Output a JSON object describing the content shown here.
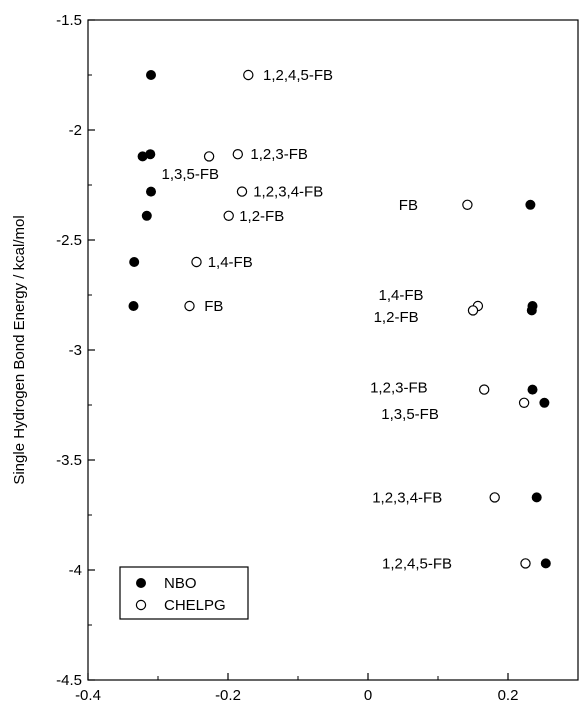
{
  "chart_data": {
    "type": "scatter",
    "xlim": [
      -0.4,
      0.3
    ],
    "ylim": [
      -4.5,
      -1.5
    ],
    "xticks": [
      -0.4,
      -0.2,
      0,
      0.2
    ],
    "xtick_labels": [
      "-0.4",
      "-0.2",
      "0",
      "0.2"
    ],
    "yticks": [
      -1.5,
      -2,
      -2.5,
      -3,
      -3.5,
      -4,
      -4.5
    ],
    "ytick_labels": [
      "-1.5",
      "-2",
      "-2.5",
      "-3",
      "-3.5",
      "-4",
      "-4.5"
    ],
    "xlabel": "",
    "ylabel": "Single Hydrogen Bond Energy / kcal/mol",
    "grid": false,
    "legend": {
      "placement": "bottom-left",
      "entries": [
        "NBO",
        "CHELPG"
      ]
    },
    "series": [
      {
        "name": "NBO",
        "marker": "filled-circle",
        "points": [
          {
            "x": -0.31,
            "y": -1.75
          },
          {
            "x": -0.322,
            "y": -2.12
          },
          {
            "x": -0.311,
            "y": -2.11
          },
          {
            "x": -0.31,
            "y": -2.28
          },
          {
            "x": -0.316,
            "y": -2.39
          },
          {
            "x": -0.334,
            "y": -2.6
          },
          {
            "x": -0.335,
            "y": -2.8
          },
          {
            "x": 0.232,
            "y": -2.34
          },
          {
            "x": 0.235,
            "y": -2.8
          },
          {
            "x": 0.234,
            "y": -2.82
          },
          {
            "x": 0.235,
            "y": -3.18
          },
          {
            "x": 0.252,
            "y": -3.24
          },
          {
            "x": 0.241,
            "y": -3.67
          },
          {
            "x": 0.254,
            "y": -3.97
          }
        ]
      },
      {
        "name": "CHELPG",
        "marker": "open-circle",
        "points": [
          {
            "x": -0.171,
            "y": -1.75
          },
          {
            "x": -0.227,
            "y": -2.12
          },
          {
            "x": -0.186,
            "y": -2.11
          },
          {
            "x": -0.18,
            "y": -2.28
          },
          {
            "x": -0.199,
            "y": -2.39
          },
          {
            "x": -0.245,
            "y": -2.6
          },
          {
            "x": -0.255,
            "y": -2.8
          },
          {
            "x": 0.142,
            "y": -2.34
          },
          {
            "x": 0.157,
            "y": -2.8
          },
          {
            "x": 0.15,
            "y": -2.82
          },
          {
            "x": 0.166,
            "y": -3.18
          },
          {
            "x": 0.223,
            "y": -3.24
          },
          {
            "x": 0.181,
            "y": -3.67
          },
          {
            "x": 0.225,
            "y": -3.97
          }
        ]
      }
    ],
    "annotations": [
      {
        "text": "1,2,4,5-FB",
        "x": -0.15,
        "y": -1.75,
        "anchor": "start"
      },
      {
        "text": "1,2,3-FB",
        "x": -0.168,
        "y": -2.11,
        "anchor": "start"
      },
      {
        "text": "1,3,5-FB",
        "x": -0.295,
        "y": -2.2,
        "anchor": "start"
      },
      {
        "text": "1,2,3,4-FB",
        "x": -0.164,
        "y": -2.28,
        "anchor": "start"
      },
      {
        "text": "1,2-FB",
        "x": -0.184,
        "y": -2.39,
        "anchor": "start"
      },
      {
        "text": "1,4-FB",
        "x": -0.229,
        "y": -2.6,
        "anchor": "start"
      },
      {
        "text": "FB",
        "x": -0.234,
        "y": -2.8,
        "anchor": "start"
      },
      {
        "text": "FB",
        "x": 0.044,
        "y": -2.34,
        "anchor": "start"
      },
      {
        "text": "1,4-FB",
        "x": 0.015,
        "y": -2.75,
        "anchor": "start"
      },
      {
        "text": "1,2-FB",
        "x": 0.008,
        "y": -2.85,
        "anchor": "start"
      },
      {
        "text": "1,2,3-FB",
        "x": 0.003,
        "y": -3.17,
        "anchor": "start"
      },
      {
        "text": "1,3,5-FB",
        "x": 0.019,
        "y": -3.29,
        "anchor": "start"
      },
      {
        "text": "1,2,3,4-FB",
        "x": 0.006,
        "y": -3.67,
        "anchor": "start"
      },
      {
        "text": "1,2,4,5-FB",
        "x": 0.02,
        "y": -3.97,
        "anchor": "start"
      }
    ]
  }
}
